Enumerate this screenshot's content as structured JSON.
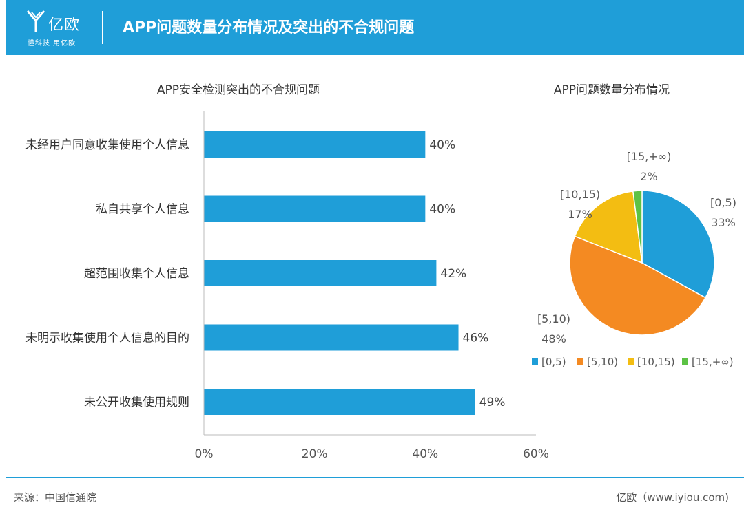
{
  "header": {
    "brand": "亿欧",
    "slogan": "懂科技 用亿欧",
    "title": "APP问题数量分布情况及突出的不合规问题"
  },
  "footer": {
    "source": "来源：中国信通院",
    "brand_url": "亿欧（www.iyiou.com)"
  },
  "colors": {
    "header_bg": "#1f9ed8",
    "bar": "#1f9ed8",
    "pie": [
      "#1f9ed8",
      "#f48a22",
      "#f3bd12",
      "#5cc245"
    ]
  },
  "chart_data": [
    {
      "type": "bar",
      "orientation": "horizontal",
      "title": "APP安全检测突出的不合规问题",
      "categories": [
        "未经用户同意收集使用个人信息",
        "私自共享个人信息",
        "超范围收集个人信息",
        "未明示收集使用个人信息的目的",
        "未公开收集使用规则"
      ],
      "values": [
        40,
        40,
        42,
        46,
        49
      ],
      "value_labels": [
        "40%",
        "40%",
        "42%",
        "46%",
        "49%"
      ],
      "xlim": [
        0,
        60
      ],
      "xticks": [
        0,
        20,
        40,
        60
      ],
      "xtick_labels": [
        "0%",
        "20%",
        "40%",
        "60%"
      ],
      "grid": false
    },
    {
      "type": "pie",
      "title": "APP问题数量分布情况",
      "labels": [
        "[0,5)",
        "[5,10)",
        "[10,15)",
        "[15,+∞)"
      ],
      "values": [
        33,
        48,
        17,
        2
      ],
      "value_labels": [
        "33%",
        "48%",
        "17%",
        "2%"
      ],
      "legend": [
        "[0,5)",
        "[5,10)",
        "[10,15)",
        "[15,+∞)"
      ],
      "legend_position": "bottom"
    }
  ]
}
